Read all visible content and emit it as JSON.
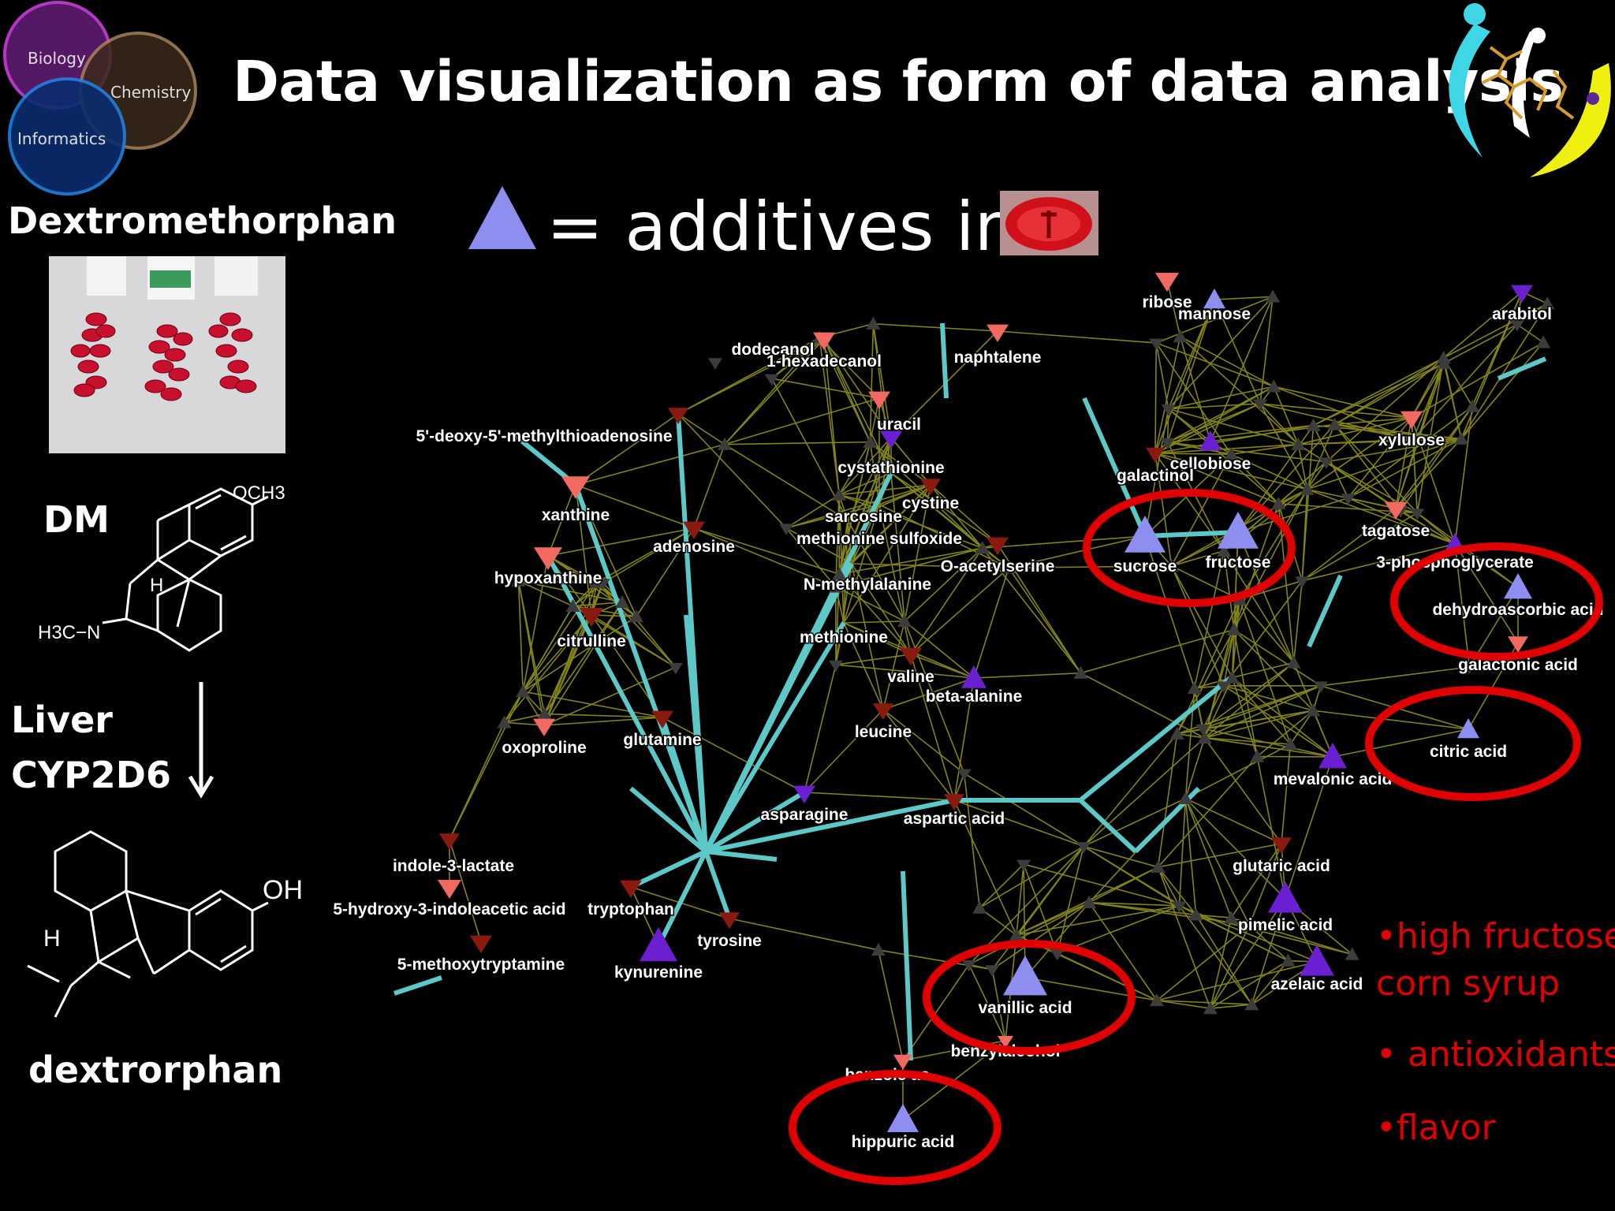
{
  "title": "Data visualization as form of data analysis",
  "venn": [
    "Biology",
    "Chemistry",
    "Informatics"
  ],
  "left_panel": {
    "drug": "Dextromethorphan",
    "parent_abbrev": "DM",
    "och3": "OCH3",
    "h3c_n": "H3C−N",
    "h_atom": "H",
    "oh": "OH",
    "enzyme_line1": "Liver",
    "enzyme_line2": "CYP2D6",
    "metabolite": "dextrorphan"
  },
  "legend": {
    "text": "= additives in"
  },
  "network": {
    "node_labels": [
      "dodecanol",
      "1-hexadecanol",
      "naphtalene",
      "uracil",
      "5'-deoxy-5'-methylthioadenosine",
      "cystathionine",
      "xanthine",
      "adenosine",
      "hypoxanthine",
      "sarcosine",
      "cystine",
      "methionine sulfoxide",
      "O-acetylserine",
      "N-methylalanine",
      "citrulline",
      "methionine",
      "valine",
      "beta-alanine",
      "oxoproline",
      "glutamine",
      "leucine",
      "asparagine",
      "aspartic acid",
      "indole-3-lactate",
      "5-hydroxy-3-indoleacetic acid",
      "tryptophan",
      "5-methoxytryptamine",
      "kynurenine",
      "tyrosine",
      "vanillic acid",
      "benzylalcohol",
      "benzoic acid",
      "hippuric acid",
      "ribose",
      "mannose",
      "arabitol",
      "cellobiose",
      "galactinol",
      "xylulose",
      "sucrose",
      "fructose",
      "tagatose",
      "3-phosphoglycerate",
      "dehydroascorbic acid",
      "galactonic acid",
      "citric acid",
      "mevalonic acid",
      "glutaric acid",
      "pimelic acid",
      "azelaic acid"
    ],
    "highlighted_additives": [
      "sucrose",
      "fructose",
      "dehydroascorbic acid",
      "citric acid",
      "vanillic acid",
      "hippuric acid"
    ],
    "colors": {
      "edge_olive": "#9a9a1c",
      "edge_cyan": "#5cc8c8",
      "additive": "#8e8ef0",
      "purple": "#6a1fd0",
      "salmon": "#f06a62",
      "darkred": "#8a1a10",
      "gray": "#3c3c3c",
      "circle": "#e00000"
    }
  },
  "bullets": [
    "•high fructose",
    "corn syrup",
    "• antioxidants",
    "•flavor"
  ]
}
